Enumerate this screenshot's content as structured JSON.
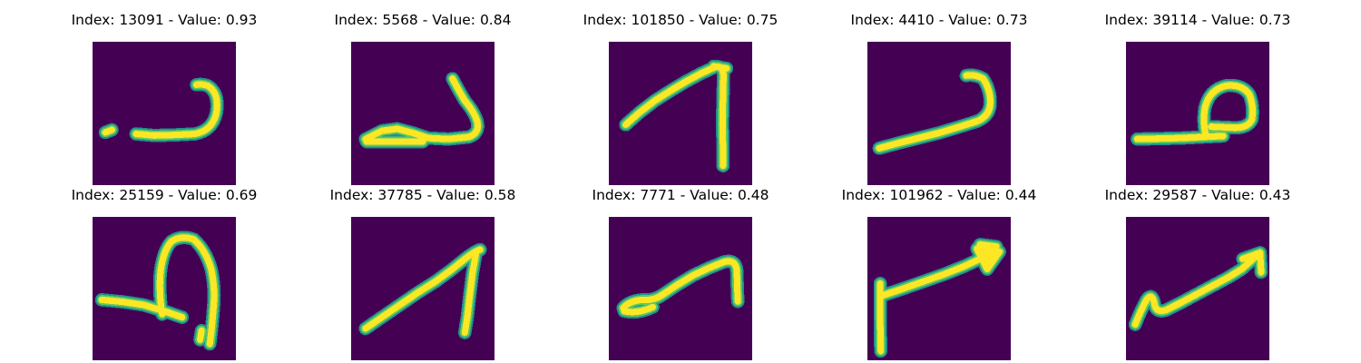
{
  "colors": {
    "background": "#440154",
    "stroke_mid": "#21918c",
    "stroke_edge": "#5ec962",
    "stroke_core": "#fde725"
  },
  "panels": [
    {
      "title": "Index: 13091 - Value: 0.93"
    },
    {
      "title": "Index: 5568 - Value: 0.84"
    },
    {
      "title": "Index: 101850 - Value: 0.75"
    },
    {
      "title": "Index: 4410 - Value: 0.73"
    },
    {
      "title": "Index: 39114 - Value: 0.73"
    },
    {
      "title": "Index: 25159 - Value: 0.69"
    },
    {
      "title": "Index: 37785 - Value: 0.58"
    },
    {
      "title": "Index: 7771 - Value: 0.48"
    },
    {
      "title": "Index: 101962 - Value: 0.44"
    },
    {
      "title": "Index: 29587 - Value: 0.43"
    }
  ]
}
